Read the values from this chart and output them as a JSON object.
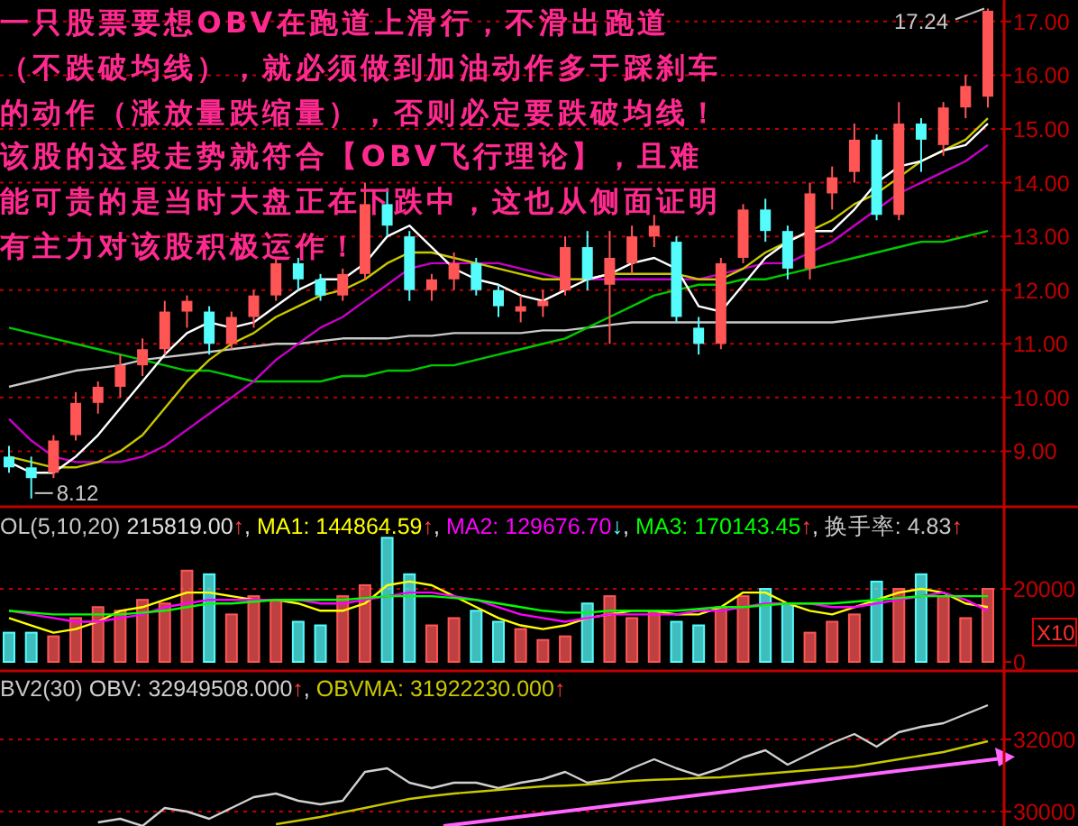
{
  "chart_data": [
    {
      "type": "candlestick",
      "title": "一只股票要想OBV在跑道上滑行，不滑出跑道（不跌破均线），就必须做到加油动作多于踩刹车的动作（涨放量跌缩量），否则必定要跌破均线！该股的这段走势就符合【OBV飞行理论】，且难能可贵的是当时大盘正在下跌中，这也从侧面证明有主力对该股积极运作！",
      "categories": [
        null,
        null,
        null,
        null,
        null,
        null,
        null,
        null,
        null,
        null,
        null,
        null,
        null,
        null,
        null,
        null,
        null,
        null,
        null,
        null,
        null,
        null,
        null,
        null,
        null,
        null,
        null,
        null,
        null,
        null,
        null,
        null,
        null,
        null,
        null,
        null,
        null,
        null,
        null,
        null,
        null,
        null,
        null,
        null,
        null
      ],
      "ohlc": [
        [
          8.9,
          9.1,
          8.6,
          8.7
        ],
        [
          8.7,
          8.9,
          8.12,
          8.5
        ],
        [
          8.6,
          9.3,
          8.5,
          9.2
        ],
        [
          9.3,
          10.1,
          9.2,
          9.9
        ],
        [
          9.9,
          10.3,
          9.7,
          10.2
        ],
        [
          10.2,
          10.8,
          10.0,
          10.6
        ],
        [
          10.6,
          11.1,
          10.4,
          10.9
        ],
        [
          10.9,
          11.8,
          10.8,
          11.6
        ],
        [
          11.6,
          11.9,
          11.3,
          11.8
        ],
        [
          11.6,
          11.7,
          10.8,
          11.0
        ],
        [
          11.0,
          11.6,
          10.9,
          11.5
        ],
        [
          11.5,
          12.0,
          11.3,
          11.9
        ],
        [
          11.9,
          12.6,
          11.8,
          12.5
        ],
        [
          12.5,
          12.6,
          12.0,
          12.2
        ],
        [
          12.2,
          12.3,
          11.8,
          11.9
        ],
        [
          11.9,
          12.4,
          11.8,
          12.3
        ],
        [
          12.3,
          14.0,
          12.2,
          13.6
        ],
        [
          13.6,
          13.9,
          13.0,
          13.2
        ],
        [
          13.0,
          13.1,
          11.8,
          12.0
        ],
        [
          12.0,
          12.3,
          11.8,
          12.2
        ],
        [
          12.2,
          12.7,
          12.0,
          12.5
        ],
        [
          12.5,
          12.6,
          11.9,
          12.0
        ],
        [
          12.0,
          12.1,
          11.5,
          11.7
        ],
        [
          11.6,
          11.9,
          11.4,
          11.7
        ],
        [
          11.7,
          12.0,
          11.5,
          11.8
        ],
        [
          12.0,
          13.0,
          11.9,
          12.8
        ],
        [
          12.8,
          13.1,
          12.0,
          12.2
        ],
        [
          12.1,
          13.1,
          11.0,
          12.6
        ],
        [
          12.5,
          13.2,
          12.3,
          13.0
        ],
        [
          13.0,
          13.4,
          12.8,
          13.2
        ],
        [
          12.9,
          13.0,
          11.4,
          11.5
        ],
        [
          11.3,
          11.5,
          10.8,
          11.0
        ],
        [
          11.0,
          12.6,
          10.9,
          12.5
        ],
        [
          12.6,
          13.6,
          12.5,
          13.5
        ],
        [
          13.5,
          13.7,
          12.9,
          13.1
        ],
        [
          13.1,
          13.2,
          12.2,
          12.4
        ],
        [
          12.4,
          14.0,
          12.2,
          13.8
        ],
        [
          13.8,
          14.3,
          13.5,
          14.1
        ],
        [
          14.2,
          15.1,
          14.0,
          14.8
        ],
        [
          14.8,
          14.9,
          13.3,
          13.4
        ],
        [
          13.4,
          15.5,
          13.3,
          15.1
        ],
        [
          15.1,
          15.2,
          14.2,
          14.8
        ],
        [
          14.7,
          15.5,
          14.5,
          15.4
        ],
        [
          15.4,
          16.0,
          15.2,
          15.8
        ],
        [
          15.6,
          17.24,
          15.4,
          17.2
        ]
      ],
      "colors": [
        "#54fcfc",
        "#54fcfc",
        "#ff5555",
        "#ff5555",
        "#ff5555",
        "#ff5555",
        "#ff5555",
        "#ff5555",
        "#ff5555",
        "#54fcfc",
        "#ff5555",
        "#ff5555",
        "#ff5555",
        "#54fcfc",
        "#54fcfc",
        "#ff5555",
        "#ff5555",
        "#54fcfc",
        "#54fcfc",
        "#ff5555",
        "#ff5555",
        "#54fcfc",
        "#54fcfc",
        "#ff5555",
        "#ff5555",
        "#ff5555",
        "#54fcfc",
        "#ff5555",
        "#ff5555",
        "#ff5555",
        "#54fcfc",
        "#54fcfc",
        "#ff5555",
        "#ff5555",
        "#54fcfc",
        "#54fcfc",
        "#ff5555",
        "#ff5555",
        "#ff5555",
        "#54fcfc",
        "#ff5555",
        "#54fcfc",
        "#ff5555",
        "#ff5555",
        "#ff5555"
      ],
      "series": [
        {
          "type": "line",
          "color": "#c8c8c8",
          "values": [
            10.2,
            10.3,
            10.4,
            10.5,
            10.55,
            10.6,
            10.7,
            10.75,
            10.8,
            10.85,
            10.9,
            10.95,
            11.0,
            11.0,
            11.05,
            11.1,
            11.1,
            11.1,
            11.15,
            11.15,
            11.2,
            11.2,
            11.2,
            11.2,
            11.25,
            11.25,
            11.3,
            11.35,
            11.4,
            11.4,
            11.4,
            11.4,
            11.4,
            11.4,
            11.4,
            11.4,
            11.4,
            11.4,
            11.45,
            11.5,
            11.55,
            11.6,
            11.65,
            11.7,
            11.8
          ]
        },
        {
          "type": "line",
          "color": "#00c800",
          "values": [
            11.3,
            11.2,
            11.1,
            11.0,
            10.9,
            10.8,
            10.7,
            10.6,
            10.5,
            10.5,
            10.4,
            10.3,
            10.3,
            10.3,
            10.3,
            10.4,
            10.4,
            10.5,
            10.5,
            10.6,
            10.6,
            10.7,
            10.8,
            10.9,
            11.0,
            11.1,
            11.3,
            11.5,
            11.7,
            11.9,
            12.0,
            12.1,
            12.1,
            12.2,
            12.2,
            12.3,
            12.4,
            12.5,
            12.6,
            12.7,
            12.8,
            12.9,
            12.9,
            13.0,
            13.1
          ]
        },
        {
          "type": "line",
          "color": "#c800c8",
          "values": [
            9.6,
            9.2,
            8.9,
            8.8,
            8.8,
            8.8,
            8.9,
            9.1,
            9.4,
            9.7,
            10.0,
            10.3,
            10.7,
            11.0,
            11.3,
            11.5,
            11.8,
            12.1,
            12.4,
            12.5,
            12.5,
            12.5,
            12.5,
            12.4,
            12.3,
            12.2,
            12.2,
            12.2,
            12.2,
            12.2,
            12.2,
            12.2,
            12.3,
            12.4,
            12.5,
            12.5,
            12.7,
            12.9,
            13.2,
            13.5,
            13.8,
            14.0,
            14.2,
            14.4,
            14.7
          ]
        },
        {
          "type": "line",
          "color": "#c8c800",
          "values": [
            8.9,
            8.8,
            8.7,
            8.7,
            8.8,
            9.0,
            9.3,
            9.8,
            10.3,
            10.7,
            11.0,
            11.2,
            11.5,
            11.7,
            11.9,
            12.0,
            12.2,
            12.5,
            12.7,
            12.7,
            12.6,
            12.5,
            12.4,
            12.3,
            12.2,
            12.2,
            12.2,
            12.3,
            12.3,
            12.3,
            12.3,
            12.2,
            12.2,
            12.4,
            12.7,
            12.9,
            13.1,
            13.3,
            13.6,
            13.8,
            14.1,
            14.4,
            14.6,
            14.8,
            15.2
          ]
        },
        {
          "type": "line",
          "color": "#ffffff",
          "values": [
            8.8,
            8.6,
            8.6,
            8.9,
            9.3,
            9.8,
            10.3,
            10.8,
            11.2,
            11.4,
            11.3,
            11.4,
            11.7,
            12.0,
            12.2,
            12.2,
            12.5,
            13.0,
            13.2,
            12.8,
            12.4,
            12.2,
            12.1,
            11.9,
            11.8,
            12.0,
            12.2,
            12.3,
            12.5,
            12.6,
            12.4,
            11.7,
            11.6,
            12.1,
            12.6,
            12.9,
            13.1,
            13.1,
            13.5,
            14.0,
            14.3,
            14.4,
            14.6,
            14.7,
            15.1
          ]
        }
      ],
      "ylim": [
        8.0,
        17.4
      ],
      "yticks": [
        {
          "value": 9,
          "label": "9.00"
        },
        {
          "value": 10,
          "label": "10.00"
        },
        {
          "value": 11,
          "label": "11.00"
        },
        {
          "value": 12,
          "label": "12.00"
        },
        {
          "value": 13,
          "label": "13.00"
        },
        {
          "value": 14,
          "label": "14.00"
        },
        {
          "value": 15,
          "label": "15.00"
        },
        {
          "value": 16,
          "label": "16.00"
        },
        {
          "value": 17,
          "label": "17.00"
        }
      ],
      "grid": "y",
      "annotations": [
        "17.24",
        "8.12"
      ]
    },
    {
      "type": "bar",
      "title": "OL(5,10,20)",
      "ylabel": "X10",
      "legend": "top left",
      "categories": [
        null,
        null,
        null,
        null,
        null,
        null,
        null,
        null,
        null,
        null,
        null,
        null,
        null,
        null,
        null,
        null,
        null,
        null,
        null,
        null,
        null,
        null,
        null,
        null,
        null,
        null,
        null,
        null,
        null,
        null,
        null,
        null,
        null,
        null,
        null,
        null,
        null,
        null,
        null,
        null,
        null,
        null,
        null,
        null,
        null
      ],
      "series": [
        {
          "type": "bar",
          "name": "215819.00↑,",
          "values": [
            8000,
            8000,
            7000,
            12000,
            15000,
            14000,
            17000,
            16000,
            25000,
            24000,
            13000,
            18000,
            17000,
            11000,
            10000,
            18000,
            21000,
            34000,
            24000,
            10000,
            12000,
            14000,
            11000,
            9000,
            6000,
            7000,
            16000,
            18000,
            12000,
            14000,
            11000,
            10000,
            15000,
            18000,
            20000,
            16000,
            8000,
            11000,
            13000,
            22000,
            20000,
            24000,
            18000,
            12000,
            20000
          ],
          "colors": [
            "#54fcfc",
            "#54fcfc",
            "#ff5555",
            "#ff5555",
            "#ff5555",
            "#ff5555",
            "#ff5555",
            "#ff5555",
            "#ff5555",
            "#54fcfc",
            "#ff5555",
            "#ff5555",
            "#ff5555",
            "#54fcfc",
            "#54fcfc",
            "#ff5555",
            "#ff5555",
            "#54fcfc",
            "#54fcfc",
            "#ff5555",
            "#ff5555",
            "#54fcfc",
            "#54fcfc",
            "#ff5555",
            "#ff5555",
            "#ff5555",
            "#54fcfc",
            "#ff5555",
            "#ff5555",
            "#ff5555",
            "#54fcfc",
            "#54fcfc",
            "#ff5555",
            "#ff5555",
            "#54fcfc",
            "#54fcfc",
            "#ff5555",
            "#ff5555",
            "#ff5555",
            "#54fcfc",
            "#ff5555",
            "#54fcfc",
            "#ff5555",
            "#ff5555",
            "#ff5555"
          ]
        },
        {
          "type": "line",
          "name": "MA1: 144864.59↑,",
          "color": "#ffff00",
          "values": [
            12000,
            10000,
            8000,
            9000,
            11000,
            14000,
            15000,
            17000,
            19000,
            19000,
            18000,
            17000,
            17000,
            16000,
            14000,
            14000,
            16000,
            21000,
            22000,
            21000,
            18000,
            15000,
            12000,
            10000,
            9000,
            10000,
            12000,
            13000,
            14000,
            14000,
            13000,
            13000,
            15000,
            19000,
            19000,
            16000,
            14000,
            13000,
            15000,
            17000,
            19000,
            20000,
            19000,
            16000,
            15000
          ]
        },
        {
          "type": "line",
          "name": "MA2: 129676.70↓,",
          "color": "#ff00ff",
          "values": [
            14000,
            13000,
            12000,
            11000,
            11000,
            12000,
            13000,
            15000,
            16000,
            17000,
            17000,
            17000,
            17000,
            17000,
            16000,
            16000,
            17000,
            18000,
            19000,
            19000,
            18000,
            17000,
            15000,
            13000,
            12000,
            11000,
            12000,
            13000,
            13000,
            13000,
            13000,
            14000,
            14000,
            15000,
            16000,
            16000,
            16000,
            15000,
            15000,
            16000,
            17000,
            18000,
            19000,
            17000,
            14000
          ]
        },
        {
          "type": "line",
          "name": "MA3: 170143.45↑,",
          "color": "#00ff00",
          "values": [
            14000,
            13500,
            13000,
            13000,
            13000,
            13000,
            13500,
            14000,
            15000,
            16000,
            16000,
            16500,
            17000,
            17000,
            17000,
            17000,
            17500,
            18000,
            18000,
            18000,
            17500,
            17000,
            16000,
            15000,
            14000,
            13500,
            13500,
            14000,
            14000,
            14000,
            14000,
            14500,
            15000,
            15000,
            15500,
            16000,
            16000,
            16000,
            16500,
            17000,
            17500,
            18000,
            18000,
            18000,
            18000
          ]
        }
      ],
      "ylim": [
        0,
        41500
      ],
      "yticks": [
        0,
        20000
      ],
      "ref_lines": [
        {
          "axis": "y",
          "value": 20000,
          "color": "#c00000",
          "line_style": "dashed"
        }
      ],
      "annotations": [
        "换手率: 4.83↑"
      ]
    },
    {
      "type": "line",
      "title": "BV2(30)",
      "legend": "top left",
      "categories": [
        null,
        null,
        null,
        null,
        null,
        null,
        null,
        null,
        null,
        null,
        null,
        null,
        null,
        null,
        null,
        null,
        null,
        null,
        null,
        null,
        null,
        null,
        null,
        null,
        null,
        null,
        null,
        null,
        null,
        null,
        null,
        null,
        null,
        null,
        null,
        null,
        null,
        null,
        null,
        null,
        null,
        null,
        null,
        null,
        null
      ],
      "series": [
        {
          "name": "OBV: 32949508.000↑,",
          "color": "#d0d0d0",
          "values": [
            null,
            null,
            null,
            null,
            29700,
            29800,
            29600,
            30100,
            30000,
            29800,
            30100,
            30400,
            30500,
            30300,
            30200,
            30300,
            31100,
            31200,
            30800,
            30650,
            30800,
            30800,
            30650,
            30800,
            30900,
            31100,
            30800,
            30900,
            31200,
            31450,
            31200,
            31000,
            31200,
            31500,
            31700,
            31300,
            31600,
            31900,
            32150,
            31800,
            32200,
            32350,
            32450,
            32700,
            32950
          ]
        },
        {
          "name": "OBVMA: 31922230.000↑",
          "color": "#c8c800",
          "values": [
            null,
            null,
            null,
            null,
            null,
            null,
            null,
            null,
            null,
            null,
            null,
            null,
            29650,
            29750,
            29850,
            29980,
            30100,
            30230,
            30350,
            30430,
            30500,
            30550,
            30600,
            30650,
            30700,
            30720,
            30750,
            30800,
            30850,
            30880,
            30900,
            30930,
            30950,
            31000,
            31050,
            31100,
            31150,
            31200,
            31250,
            31350,
            31450,
            31550,
            31650,
            31800,
            31950
          ]
        }
      ],
      "ylim": [
        29600,
        33850
      ],
      "yticks": [
        30000,
        32000
      ],
      "grid": "y"
    }
  ]
}
